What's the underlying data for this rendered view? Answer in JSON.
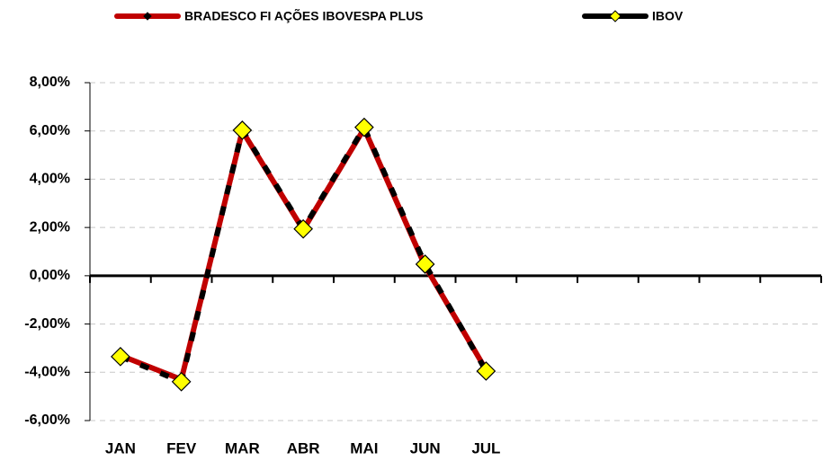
{
  "chart_data": {
    "type": "line",
    "categories": [
      "JAN",
      "FEV",
      "MAR",
      "ABR",
      "MAI",
      "JUN",
      "JUL",
      null,
      null,
      null,
      null,
      null
    ],
    "series": [
      {
        "name": "BRADESCO FI AÇÕES IBOVESPA PLUS",
        "color": "#c00000",
        "values": [
          -3.3,
          -4.3,
          6.0,
          1.9,
          6.1,
          0.4,
          -3.9,
          null,
          null,
          null,
          null,
          null
        ]
      },
      {
        "name": "IBOV",
        "color": "#000000",
        "values": [
          -3.35,
          -4.39,
          6.03,
          1.94,
          6.15,
          0.48,
          -3.95,
          null,
          null,
          null,
          null,
          null
        ]
      }
    ],
    "ylim": [
      -6,
      8
    ],
    "yticks": [
      {
        "value": -6,
        "label": "-6,00%"
      },
      {
        "value": -4,
        "label": "-4,00%"
      },
      {
        "value": -2,
        "label": "-2,00%"
      },
      {
        "value": 0,
        "label": "0,00%"
      },
      {
        "value": 2,
        "label": "2,00%"
      },
      {
        "value": 4,
        "label": "4,00%"
      },
      {
        "value": 6,
        "label": "6,00%"
      },
      {
        "value": 8,
        "label": "8,00%"
      }
    ],
    "grid": true
  }
}
